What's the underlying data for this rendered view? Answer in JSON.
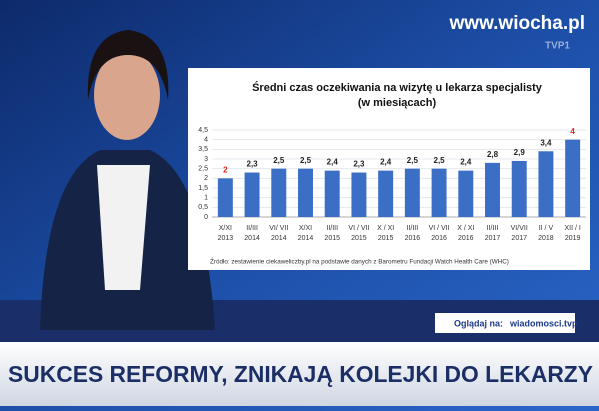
{
  "watermark": "www.wiocha.pl",
  "channel_logo": "TVP1",
  "chart_data": {
    "type": "bar",
    "title": "Średni czas oczekiwania  na wizytę u lekarza specjalisty",
    "subtitle": "(w miesiącach)",
    "categories": [
      [
        "X/XI",
        "2013"
      ],
      [
        "II/III",
        "2014"
      ],
      [
        "VI/ VII",
        "2014"
      ],
      [
        "X/XI",
        "2014"
      ],
      [
        "II/III",
        "2015"
      ],
      [
        "VI / VII",
        "2015"
      ],
      [
        "X / XI",
        "2015"
      ],
      [
        "II/III",
        "2016"
      ],
      [
        "VI / VII",
        "2016"
      ],
      [
        "X / XI",
        "2016"
      ],
      [
        "II/III",
        "2017"
      ],
      [
        "VI/VII",
        "2017"
      ],
      [
        "II / V",
        "2018"
      ],
      [
        "XII / I",
        "2019"
      ]
    ],
    "values": [
      2,
      2.3,
      2.5,
      2.5,
      2.4,
      2.3,
      2.4,
      2.5,
      2.5,
      2.4,
      2.8,
      2.9,
      3.4,
      4
    ],
    "value_labels": [
      "2",
      "2,3",
      "2,5",
      "2,5",
      "2,4",
      "2,3",
      "2,4",
      "2,5",
      "2,5",
      "2,4",
      "2,8",
      "2,9",
      "3,4",
      "4"
    ],
    "value_label_colors": [
      "#d9261c",
      "#222222",
      "#222222",
      "#222222",
      "#222222",
      "#222222",
      "#222222",
      "#222222",
      "#222222",
      "#222222",
      "#222222",
      "#222222",
      "#222222",
      "#d9261c"
    ],
    "color": "#3b6fc6",
    "ylim": [
      0,
      4.5
    ],
    "yticks": [
      0,
      {
        "value": 0.5,
        "label": "0,5"
      },
      1,
      {
        "value": 1.5,
        "label": "1,5"
      },
      2,
      {
        "value": 2.5,
        "label": "2,5"
      },
      3,
      {
        "value": 3.5,
        "label": "3,5"
      },
      4,
      {
        "value": 4.5,
        "label": "4,5"
      }
    ],
    "grid": true,
    "source": "Źródło: zestawienie ciekaweliczby.pl na podstawie danych z Barometru Fundacji Watch Health Care (WHC)"
  },
  "ticker": {
    "label": "Oglądaj na:",
    "site": "wiadomosci.tvp"
  },
  "headline": "SUKCES REFORMY, ZNIKAJĄ KOLEJKI DO LEKARZY"
}
